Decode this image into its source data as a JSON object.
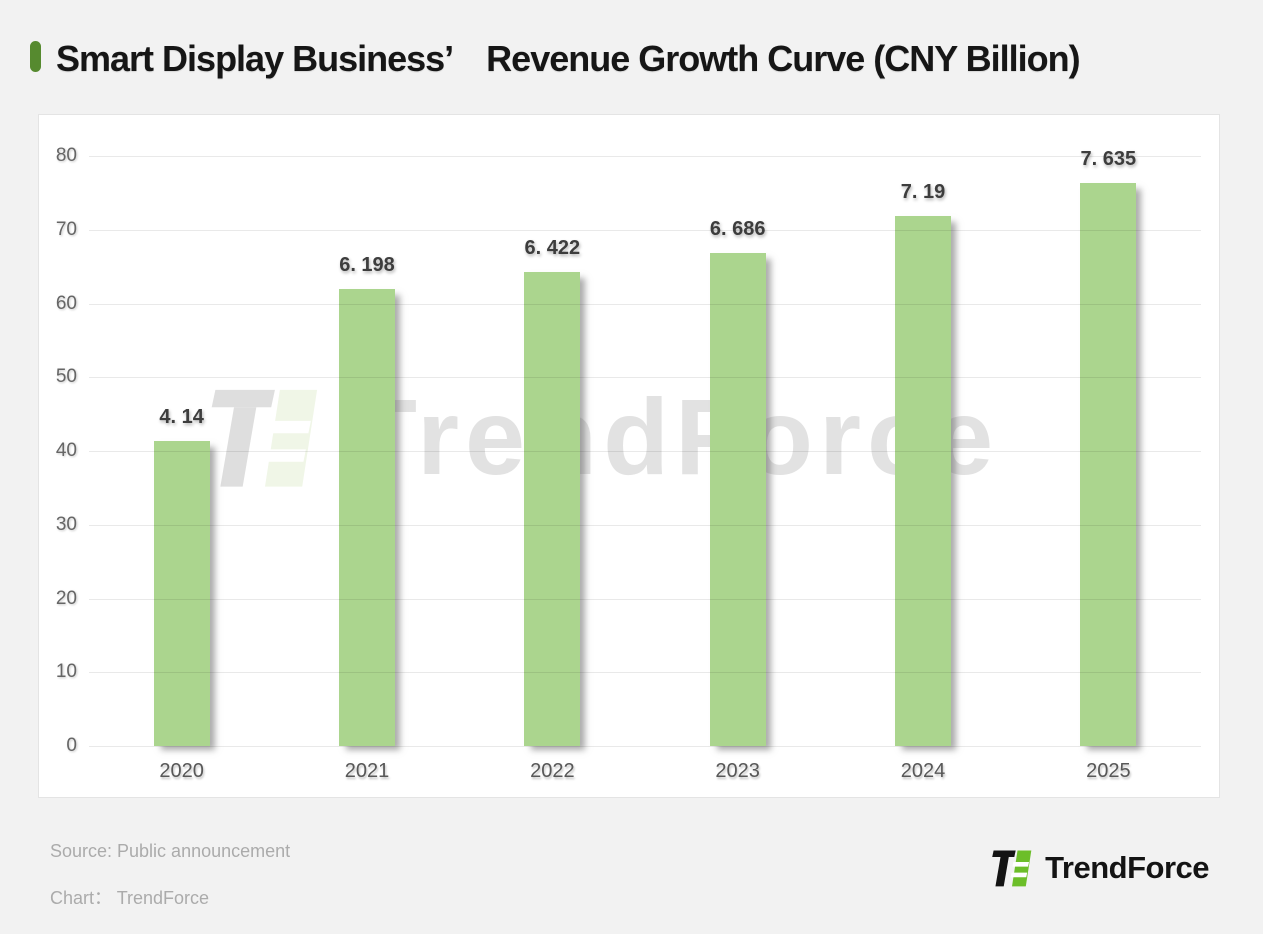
{
  "header": {
    "title": "Smart Display Business’　Revenue Growth Curve (CNY Billion)",
    "bullet_color": "#568A2F"
  },
  "chart_data": {
    "type": "bar",
    "title": "Smart Display Business’ Revenue Growth Curve (CNY Billion)",
    "categories": [
      "2020",
      "2021",
      "2022",
      "2023",
      "2024",
      "2025"
    ],
    "values": [
      4.14,
      6.198,
      6.422,
      6.686,
      7.19,
      7.635
    ],
    "bar_labels": [
      "4. 14",
      "6. 198",
      "6. 422",
      "6. 686",
      "7. 19",
      "7. 635"
    ],
    "axis_value_multiplier": 10,
    "xlabel": "",
    "ylabel": "",
    "ylim": [
      0,
      80
    ],
    "y_ticks": [
      0,
      10,
      20,
      30,
      40,
      50,
      60,
      70,
      80
    ],
    "grid": true,
    "legend": "none",
    "bar_color": "#ABD58E",
    "unit": "CNY Billion"
  },
  "watermark": {
    "text": "TrendForce"
  },
  "footer": {
    "source": "Source: Public announcement",
    "credit": "Chart：  TrendForce",
    "logo_text": "TrendForce"
  },
  "colors": {
    "page_background": "#F2F2F2",
    "card_background": "#FFFFFF",
    "bar": "#ABD58E",
    "title_text": "#161616",
    "axis_text": "#666666",
    "data_label_text": "#3D3D3D",
    "source_text": "#ABABAB",
    "logo_green": "#6CBE29",
    "logo_black": "#141414"
  }
}
